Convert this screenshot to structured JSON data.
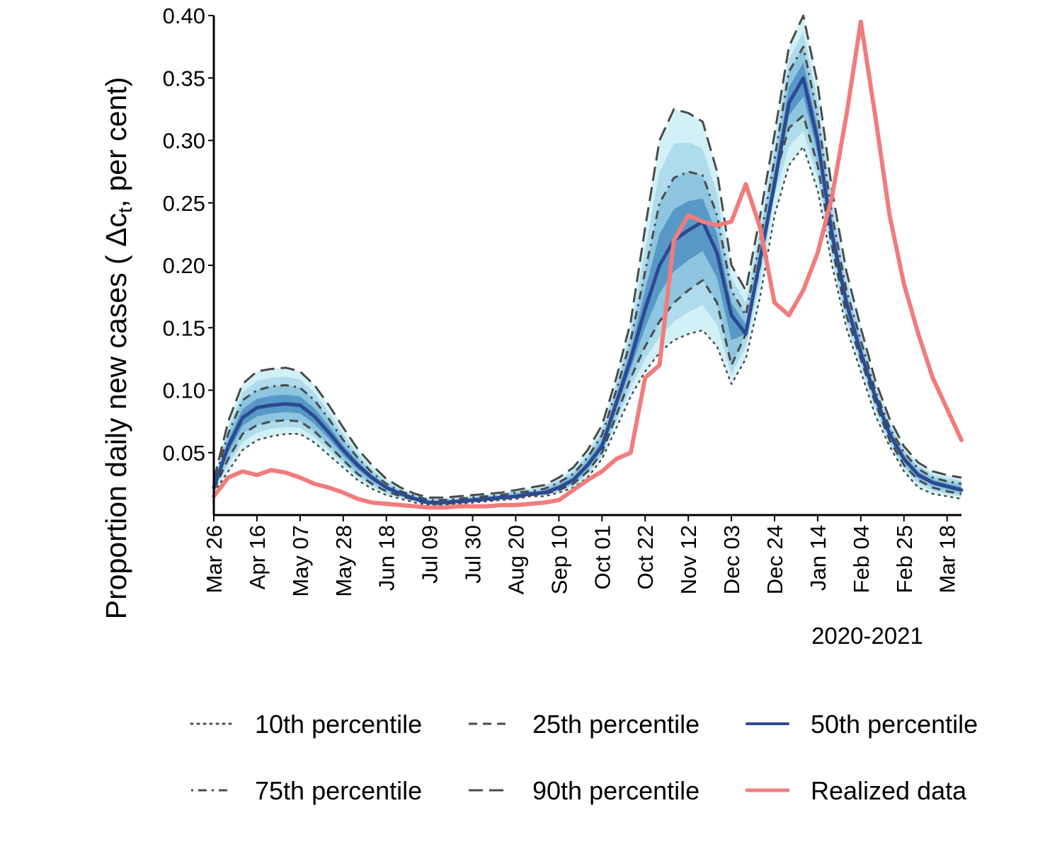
{
  "chart_data": {
    "type": "line",
    "ylabel": "Proportion daily new cases ( Δc",
    "ylabel_sub": "t",
    "ylabel_tail": ", per cent)",
    "xlabel": "2020-2021",
    "ylim": [
      0.0,
      0.4
    ],
    "xlim_days": [
      0,
      364
    ],
    "y_ticks": [
      0.05,
      0.1,
      0.15,
      0.2,
      0.25,
      0.3,
      0.35,
      0.4
    ],
    "y_tick_labels": [
      "0.05",
      "0.10",
      "0.15",
      "0.20",
      "0.25",
      "0.30",
      "0.35",
      "0.40"
    ],
    "x_ticks": [
      0,
      21,
      42,
      63,
      84,
      105,
      126,
      147,
      168,
      189,
      210,
      231,
      252,
      273,
      294,
      315,
      336,
      357
    ],
    "x_tick_labels": [
      "Mar 26",
      "Apr 16",
      "May 07",
      "May 28",
      "Jun 18",
      "Jul 09",
      "Jul 30",
      "Aug 20",
      "Sep 10",
      "Oct 01",
      "Oct 22",
      "Nov 12",
      "Dec 03",
      "Dec 24",
      "Jan 14",
      "Feb 04",
      "Feb 25",
      "Mar 18"
    ],
    "x": [
      0,
      7,
      14,
      21,
      28,
      35,
      42,
      49,
      56,
      63,
      70,
      77,
      84,
      91,
      98,
      105,
      112,
      119,
      126,
      133,
      140,
      147,
      154,
      161,
      168,
      175,
      182,
      189,
      196,
      203,
      210,
      217,
      224,
      231,
      238,
      245,
      252,
      259,
      266,
      273,
      280,
      287,
      294,
      301,
      308,
      315,
      322,
      329,
      336,
      343,
      350,
      357,
      364
    ],
    "series": [
      {
        "name": "10th percentile",
        "style": "dotted",
        "values": [
          0.018,
          0.035,
          0.052,
          0.06,
          0.063,
          0.065,
          0.065,
          0.058,
          0.048,
          0.038,
          0.028,
          0.021,
          0.016,
          0.013,
          0.01,
          0.008,
          0.008,
          0.009,
          0.01,
          0.011,
          0.012,
          0.013,
          0.015,
          0.015,
          0.018,
          0.022,
          0.03,
          0.045,
          0.07,
          0.095,
          0.115,
          0.13,
          0.14,
          0.145,
          0.148,
          0.135,
          0.105,
          0.125,
          0.175,
          0.24,
          0.28,
          0.295,
          0.26,
          0.2,
          0.15,
          0.115,
          0.08,
          0.055,
          0.035,
          0.022,
          0.017,
          0.015,
          0.013
        ]
      },
      {
        "name": "25th percentile",
        "style": "dashed",
        "values": [
          0.02,
          0.045,
          0.065,
          0.072,
          0.075,
          0.076,
          0.075,
          0.067,
          0.056,
          0.044,
          0.033,
          0.025,
          0.019,
          0.015,
          0.012,
          0.009,
          0.009,
          0.01,
          0.011,
          0.012,
          0.013,
          0.014,
          0.016,
          0.017,
          0.02,
          0.025,
          0.035,
          0.05,
          0.08,
          0.11,
          0.135,
          0.155,
          0.17,
          0.18,
          0.188,
          0.17,
          0.12,
          0.145,
          0.2,
          0.27,
          0.31,
          0.32,
          0.28,
          0.215,
          0.16,
          0.125,
          0.09,
          0.06,
          0.04,
          0.028,
          0.022,
          0.019,
          0.017
        ]
      },
      {
        "name": "50th percentile",
        "style": "solid",
        "values": [
          0.022,
          0.055,
          0.078,
          0.086,
          0.088,
          0.089,
          0.088,
          0.079,
          0.066,
          0.052,
          0.04,
          0.03,
          0.022,
          0.017,
          0.013,
          0.01,
          0.01,
          0.011,
          0.012,
          0.013,
          0.014,
          0.015,
          0.017,
          0.018,
          0.022,
          0.028,
          0.04,
          0.055,
          0.09,
          0.125,
          0.165,
          0.2,
          0.22,
          0.228,
          0.235,
          0.21,
          0.16,
          0.145,
          0.205,
          0.265,
          0.33,
          0.35,
          0.3,
          0.225,
          0.17,
          0.13,
          0.095,
          0.065,
          0.045,
          0.032,
          0.026,
          0.023,
          0.02
        ]
      },
      {
        "name": "75th percentile",
        "style": "dotdash",
        "values": [
          0.025,
          0.065,
          0.092,
          0.1,
          0.103,
          0.104,
          0.102,
          0.092,
          0.077,
          0.06,
          0.046,
          0.034,
          0.025,
          0.019,
          0.015,
          0.012,
          0.012,
          0.013,
          0.014,
          0.015,
          0.016,
          0.018,
          0.019,
          0.021,
          0.026,
          0.033,
          0.046,
          0.064,
          0.1,
          0.14,
          0.195,
          0.25,
          0.27,
          0.275,
          0.272,
          0.24,
          0.18,
          0.16,
          0.22,
          0.285,
          0.355,
          0.375,
          0.32,
          0.24,
          0.18,
          0.14,
          0.1,
          0.07,
          0.05,
          0.037,
          0.03,
          0.027,
          0.025
        ]
      },
      {
        "name": "90th percentile",
        "style": "longdash",
        "values": [
          0.028,
          0.075,
          0.105,
          0.115,
          0.117,
          0.118,
          0.115,
          0.104,
          0.088,
          0.07,
          0.053,
          0.04,
          0.029,
          0.022,
          0.017,
          0.014,
          0.014,
          0.015,
          0.016,
          0.017,
          0.018,
          0.02,
          0.022,
          0.024,
          0.03,
          0.038,
          0.052,
          0.072,
          0.11,
          0.155,
          0.23,
          0.3,
          0.325,
          0.322,
          0.315,
          0.275,
          0.2,
          0.18,
          0.24,
          0.305,
          0.375,
          0.4,
          0.345,
          0.26,
          0.195,
          0.15,
          0.108,
          0.077,
          0.055,
          0.042,
          0.035,
          0.032,
          0.03
        ]
      },
      {
        "name": "Realized data",
        "style": "realized",
        "values": [
          0.015,
          0.03,
          0.035,
          0.032,
          0.036,
          0.034,
          0.03,
          0.025,
          0.022,
          0.018,
          0.013,
          0.01,
          0.009,
          0.008,
          0.007,
          0.006,
          0.006,
          0.007,
          0.007,
          0.007,
          0.008,
          0.008,
          0.009,
          0.01,
          0.012,
          0.02,
          0.028,
          0.035,
          0.045,
          0.05,
          0.11,
          0.12,
          0.22,
          0.24,
          0.235,
          0.232,
          0.235,
          0.265,
          0.23,
          0.17,
          0.16,
          0.18,
          0.21,
          0.255,
          0.32,
          0.395,
          0.32,
          0.24,
          0.185,
          0.145,
          0.11,
          0.085,
          0.06
        ]
      }
    ],
    "legend": [
      {
        "label": "10th percentile",
        "style": "dotted"
      },
      {
        "label": "25th percentile",
        "style": "dashed"
      },
      {
        "label": "50th percentile",
        "style": "solid"
      },
      {
        "label": "75th percentile",
        "style": "dotdash"
      },
      {
        "label": "90th percentile",
        "style": "longdash"
      },
      {
        "label": "Realized data",
        "style": "realized"
      }
    ],
    "legend_position": "bottom",
    "colors": {
      "median": "#2b4a93",
      "realized": "#f07c7c",
      "percentile": "#4a4a4a",
      "band_outer": "#cdeff5",
      "band_mid": "#8ec5df",
      "band_inner": "#4f8fc2"
    }
  }
}
